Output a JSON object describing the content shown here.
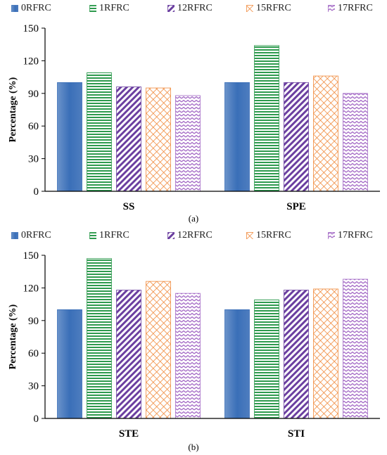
{
  "chart_data": [
    {
      "type": "bar",
      "caption": "(a)",
      "categories": [
        "SS",
        "SPE"
      ],
      "series": [
        {
          "name": "0RFRC",
          "values": [
            100,
            100
          ]
        },
        {
          "name": "1RFRC",
          "values": [
            109,
            134
          ]
        },
        {
          "name": "12RFRC",
          "values": [
            96,
            100
          ]
        },
        {
          "name": "15RFRC",
          "values": [
            95,
            106
          ]
        },
        {
          "name": "17RFRC",
          "values": [
            88,
            90
          ]
        }
      ],
      "ylabel": "Percentage (%)",
      "ylim": [
        0,
        150
      ],
      "yticks": [
        0,
        30,
        60,
        90,
        120,
        150
      ],
      "legend": "top",
      "grid": false
    },
    {
      "type": "bar",
      "caption": "(b)",
      "categories": [
        "STE",
        "STI"
      ],
      "series": [
        {
          "name": "0RFRC",
          "values": [
            100,
            100
          ]
        },
        {
          "name": "1RFRC",
          "values": [
            147,
            109
          ]
        },
        {
          "name": "12RFRC",
          "values": [
            118,
            118
          ]
        },
        {
          "name": "15RFRC",
          "values": [
            126,
            119
          ]
        },
        {
          "name": "17RFRC",
          "values": [
            115,
            128
          ]
        }
      ],
      "ylabel": "Percentage (%)",
      "ylim": [
        0,
        150
      ],
      "yticks": [
        0,
        30,
        60,
        90,
        120,
        150
      ],
      "legend": "top",
      "grid": false
    }
  ],
  "series_styles": [
    {
      "name": "0RFRC",
      "color": "#3a6fb8",
      "pattern": "solid"
    },
    {
      "name": "1RFRC",
      "color": "#2e9a4e",
      "pattern": "horizontal-stripes"
    },
    {
      "name": "12RFRC",
      "color": "#6b3fa0",
      "pattern": "diagonal-stripes"
    },
    {
      "name": "15RFRC",
      "color": "#f08a3c",
      "pattern": "crosshatch"
    },
    {
      "name": "17RFRC",
      "color": "#a46bc6",
      "pattern": "zigzag"
    }
  ]
}
